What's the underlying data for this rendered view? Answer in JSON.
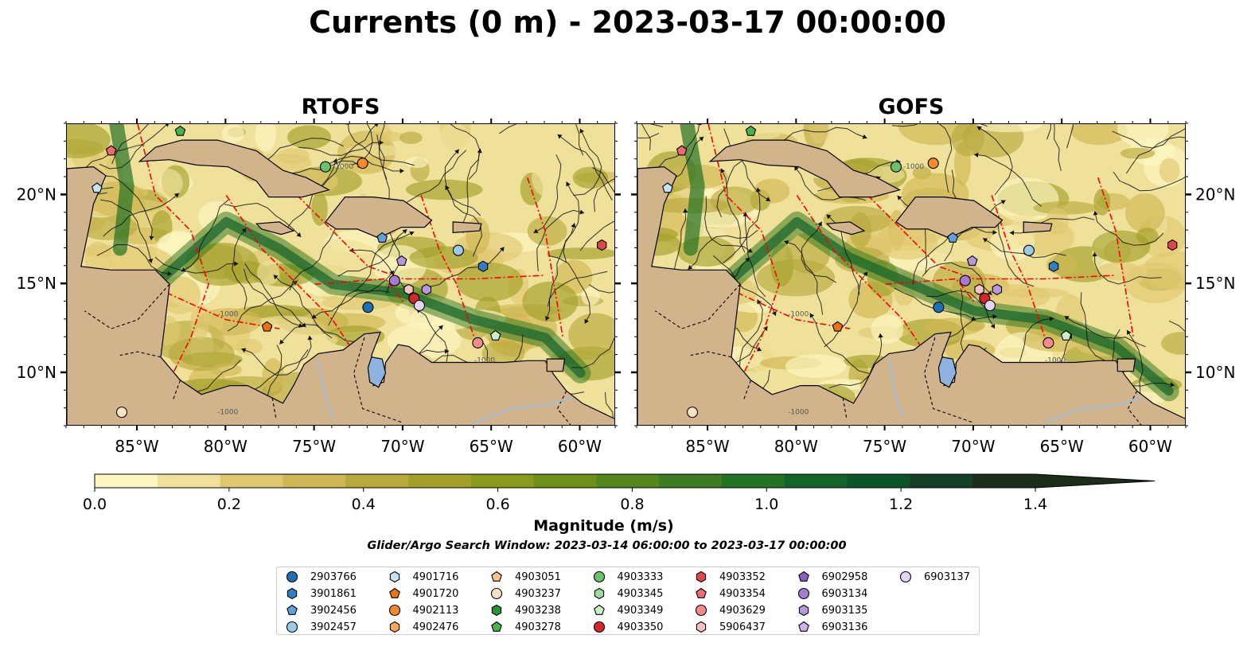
{
  "title": "Currents (0 m) - 2023-03-17 00:00:00",
  "panels": [
    {
      "id": "rtofs",
      "title": "RTOFS"
    },
    {
      "id": "gofs",
      "title": "GOFS"
    }
  ],
  "map": {
    "lon_range": [
      -89,
      -58
    ],
    "lat_range": [
      7,
      24
    ],
    "lon_ticks": [
      "85°W",
      "80°W",
      "75°W",
      "70°W",
      "65°W",
      "60°W"
    ],
    "lat_ticks": [
      "20°N",
      "15°N",
      "10°N"
    ],
    "land_color": "#d2b48c",
    "lake_color": "#8fb3e0",
    "eez_color": "#ff0000",
    "bathy_contour_label": "-1000"
  },
  "colorbar": {
    "label": "Magnitude (m/s)",
    "ticks": [
      "0.0",
      "0.2",
      "0.4",
      "0.6",
      "0.8",
      "1.0",
      "1.2",
      "1.4"
    ],
    "colors": [
      "#fdf6c2",
      "#f0e19a",
      "#e0c870",
      "#cfb753",
      "#b8a93d",
      "#a3a029",
      "#8a9a1a",
      "#6f9018",
      "#55851d",
      "#3d7c22",
      "#237225",
      "#13642b",
      "#0b5429",
      "#123f25",
      "#1a2e1a"
    ]
  },
  "search_window": "Glider/Argo Search Window: 2023-03-14 06:00:00 to 2023-03-17 00:00:00",
  "legend": [
    {
      "label": "2903766",
      "marker": "circle",
      "color": "#1f6fb5"
    },
    {
      "label": "3901861",
      "marker": "hexagon",
      "color": "#2f7fc1"
    },
    {
      "label": "3902456",
      "marker": "pentagon",
      "color": "#5fa3dd"
    },
    {
      "label": "3902457",
      "marker": "circle",
      "color": "#9ecae9"
    },
    {
      "label": "4901716",
      "marker": "hexagon",
      "color": "#c6e3f5"
    },
    {
      "label": "4901720",
      "marker": "pentagon",
      "color": "#ed7311"
    },
    {
      "label": "4902113",
      "marker": "circle",
      "color": "#f78a2a"
    },
    {
      "label": "4902476",
      "marker": "hexagon",
      "color": "#fca65a"
    },
    {
      "label": "4903051",
      "marker": "pentagon",
      "color": "#fdc48e"
    },
    {
      "label": "4903237",
      "marker": "circle",
      "color": "#fde2c6"
    },
    {
      "label": "4903238",
      "marker": "hexagon",
      "color": "#259435"
    },
    {
      "label": "4903278",
      "marker": "pentagon",
      "color": "#4ab34e"
    },
    {
      "label": "4903333",
      "marker": "circle",
      "color": "#6cc06a"
    },
    {
      "label": "4903345",
      "marker": "hexagon",
      "color": "#9ed99b"
    },
    {
      "label": "4903349",
      "marker": "pentagon",
      "color": "#c9f0c6"
    },
    {
      "label": "4903350",
      "marker": "circle",
      "color": "#d62728"
    },
    {
      "label": "4903352",
      "marker": "hexagon",
      "color": "#e0474a"
    },
    {
      "label": "4903354",
      "marker": "pentagon",
      "color": "#ee6a6c"
    },
    {
      "label": "4903629",
      "marker": "circle",
      "color": "#f58d8d"
    },
    {
      "label": "5906437",
      "marker": "hexagon",
      "color": "#f9c2c2"
    },
    {
      "label": "6902958",
      "marker": "pentagon",
      "color": "#8e5fbf"
    },
    {
      "label": "6903134",
      "marker": "circle",
      "color": "#a47bd0"
    },
    {
      "label": "6903135",
      "marker": "hexagon",
      "color": "#b896e0"
    },
    {
      "label": "6903136",
      "marker": "pentagon",
      "color": "#cfb2ec"
    },
    {
      "label": "6903137",
      "marker": "circle",
      "color": "#e6d4f7"
    }
  ],
  "floats_rtofs": [
    {
      "id": "5906437",
      "lon": -87.3,
      "lat": 20.4,
      "marker": "pentagon",
      "color": "#c6e3f5"
    },
    {
      "id": "4903354",
      "lon": -86.5,
      "lat": 22.5,
      "marker": "pentagon",
      "color": "#ee6a6c"
    },
    {
      "id": "4903278",
      "lon": -82.6,
      "lat": 23.6,
      "marker": "pentagon",
      "color": "#4ab34e"
    },
    {
      "id": "4903333",
      "lon": -74.4,
      "lat": 21.6,
      "marker": "circle",
      "color": "#6cc06a"
    },
    {
      "id": "4902113",
      "lon": -72.3,
      "lat": 21.8,
      "marker": "circle",
      "color": "#f78a2a"
    },
    {
      "id": "3902456",
      "lon": -71.2,
      "lat": 17.6,
      "marker": "pentagon",
      "color": "#5fa3dd"
    },
    {
      "id": "6903136",
      "lon": -70.1,
      "lat": 16.3,
      "marker": "pentagon",
      "color": "#b896e0"
    },
    {
      "id": "3902457",
      "lon": -66.9,
      "lat": 16.9,
      "marker": "circle",
      "color": "#9ecae9"
    },
    {
      "id": "3901861",
      "lon": -65.5,
      "lat": 16.0,
      "marker": "hexagon",
      "color": "#2f7fc1"
    },
    {
      "id": "4903352",
      "lon": -58.8,
      "lat": 17.2,
      "marker": "hexagon",
      "color": "#e0474a"
    },
    {
      "id": "6903134",
      "lon": -70.5,
      "lat": 15.2,
      "marker": "circle",
      "color": "#a47bd0"
    },
    {
      "id": "5906437b",
      "lon": -69.7,
      "lat": 14.7,
      "marker": "hexagon",
      "color": "#f9c2c2"
    },
    {
      "id": "6903135",
      "lon": -68.7,
      "lat": 14.7,
      "marker": "hexagon",
      "color": "#b896e0"
    },
    {
      "id": "4903350",
      "lon": -69.4,
      "lat": 14.2,
      "marker": "circle",
      "color": "#d62728"
    },
    {
      "id": "6903137",
      "lon": -69.1,
      "lat": 13.8,
      "marker": "circle",
      "color": "#e6d4f7"
    },
    {
      "id": "2903766",
      "lon": -72.0,
      "lat": 13.7,
      "marker": "circle",
      "color": "#1f6fb5"
    },
    {
      "id": "4901720",
      "lon": -77.7,
      "lat": 12.6,
      "marker": "pentagon",
      "color": "#ed7311"
    },
    {
      "id": "4903629",
      "lon": -65.8,
      "lat": 11.7,
      "marker": "circle",
      "color": "#f58d8d"
    },
    {
      "id": "4903349",
      "lon": -64.8,
      "lat": 12.1,
      "marker": "pentagon",
      "color": "#c9f0c6"
    },
    {
      "id": "4903237",
      "lon": -85.9,
      "lat": 7.8,
      "marker": "circle",
      "color": "#fde2c6"
    }
  ],
  "floats_gofs": [
    {
      "id": "5906437",
      "lon": -87.3,
      "lat": 20.4,
      "marker": "pentagon",
      "color": "#c6e3f5"
    },
    {
      "id": "4903354",
      "lon": -86.5,
      "lat": 22.5,
      "marker": "pentagon",
      "color": "#ee6a6c"
    },
    {
      "id": "4903278",
      "lon": -82.6,
      "lat": 23.6,
      "marker": "pentagon",
      "color": "#4ab34e"
    },
    {
      "id": "4903333",
      "lon": -74.4,
      "lat": 21.6,
      "marker": "circle",
      "color": "#6cc06a"
    },
    {
      "id": "4902113",
      "lon": -72.3,
      "lat": 21.8,
      "marker": "circle",
      "color": "#f78a2a"
    },
    {
      "id": "3902456",
      "lon": -71.2,
      "lat": 17.6,
      "marker": "pentagon",
      "color": "#5fa3dd"
    },
    {
      "id": "6903136",
      "lon": -70.1,
      "lat": 16.3,
      "marker": "pentagon",
      "color": "#b896e0"
    },
    {
      "id": "3902457",
      "lon": -66.9,
      "lat": 16.9,
      "marker": "circle",
      "color": "#9ecae9"
    },
    {
      "id": "3901861",
      "lon": -65.5,
      "lat": 16.0,
      "marker": "hexagon",
      "color": "#2f7fc1"
    },
    {
      "id": "4903352",
      "lon": -58.8,
      "lat": 17.2,
      "marker": "hexagon",
      "color": "#e0474a"
    },
    {
      "id": "6903134",
      "lon": -70.5,
      "lat": 15.2,
      "marker": "circle",
      "color": "#a47bd0"
    },
    {
      "id": "5906437b",
      "lon": -69.7,
      "lat": 14.7,
      "marker": "hexagon",
      "color": "#f9c2c2"
    },
    {
      "id": "6903135",
      "lon": -68.7,
      "lat": 14.7,
      "marker": "hexagon",
      "color": "#b896e0"
    },
    {
      "id": "4903350",
      "lon": -69.4,
      "lat": 14.2,
      "marker": "circle",
      "color": "#d62728"
    },
    {
      "id": "6903137",
      "lon": -69.1,
      "lat": 13.8,
      "marker": "circle",
      "color": "#e6d4f7"
    },
    {
      "id": "2903766",
      "lon": -72.0,
      "lat": 13.7,
      "marker": "circle",
      "color": "#1f6fb5"
    },
    {
      "id": "4901720",
      "lon": -77.7,
      "lat": 12.6,
      "marker": "pentagon",
      "color": "#ed7311"
    },
    {
      "id": "4903629",
      "lon": -65.8,
      "lat": 11.7,
      "marker": "circle",
      "color": "#f58d8d"
    },
    {
      "id": "4903349",
      "lon": -64.8,
      "lat": 12.1,
      "marker": "pentagon",
      "color": "#c9f0c6"
    },
    {
      "id": "4903237",
      "lon": -85.9,
      "lat": 7.8,
      "marker": "circle",
      "color": "#fde2c6"
    }
  ]
}
